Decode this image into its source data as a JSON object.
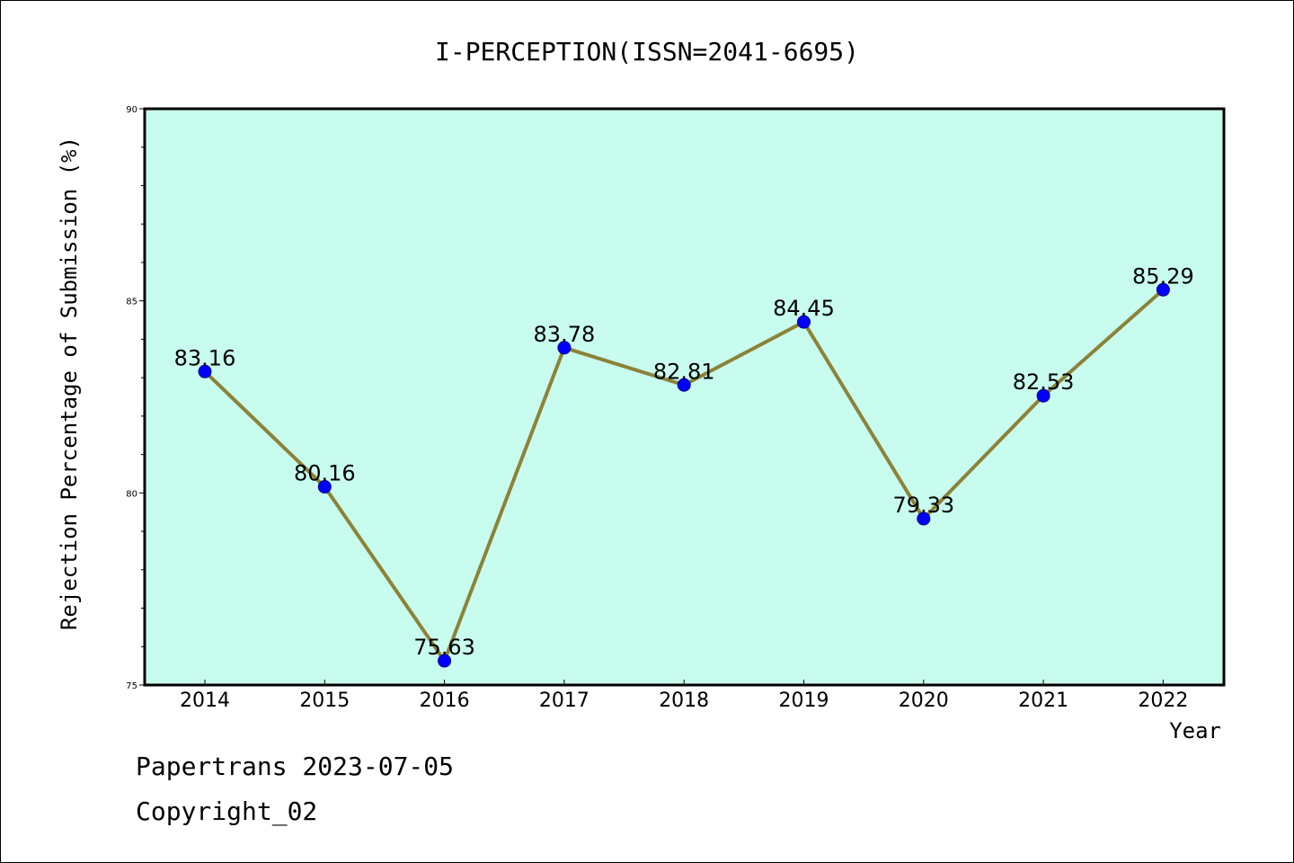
{
  "chart_data": {
    "type": "line",
    "title": "I-PERCEPTION(ISSN=2041-6695)",
    "xlabel": "Year",
    "ylabel": "Rejection Percentage of Submission (%)",
    "categories": [
      "2014",
      "2015",
      "2016",
      "2017",
      "2018",
      "2019",
      "2020",
      "2021",
      "2022"
    ],
    "values": [
      83.16,
      80.16,
      75.63,
      83.78,
      82.81,
      84.45,
      79.33,
      82.53,
      85.29
    ],
    "value_labels": [
      "83.16",
      "80.16",
      "75.63",
      "83.78",
      "82.81",
      "84.45",
      "79.33",
      "82.53",
      "85.29"
    ],
    "ylim": [
      75,
      90
    ],
    "yticks": [
      "75",
      "80",
      "85",
      "90"
    ],
    "grid": false,
    "colors": {
      "plot_bg": "#c8fcee",
      "line": "#8c8238",
      "marker": "#0000ff"
    }
  },
  "footer": {
    "line1": "Papertrans 2023-07-05",
    "line2": "Copyright_02"
  }
}
